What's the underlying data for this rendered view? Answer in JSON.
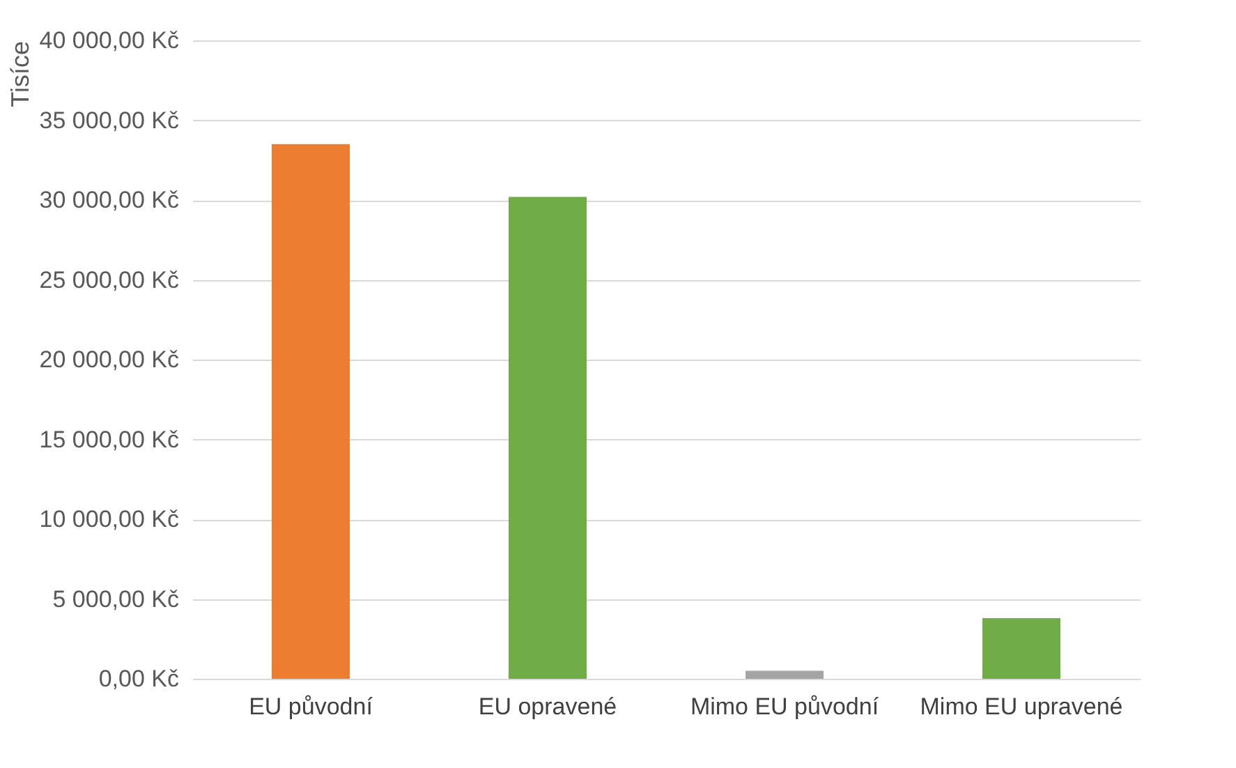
{
  "chart_data": {
    "type": "bar",
    "ylabel": "Tisíce",
    "categories": [
      "EU původní",
      "EU opravené",
      "Mimo EU původní",
      "Mimo EU upravené"
    ],
    "values": [
      33500,
      30200,
      500,
      3800
    ],
    "colors": [
      "#ed7d31",
      "#70ad47",
      "#a5a5a5",
      "#70ad47"
    ],
    "ylim": [
      0,
      40000
    ],
    "yticks": [
      {
        "value": 0,
        "label": "0,00 Kč"
      },
      {
        "value": 5000,
        "label": "5 000,00 Kč"
      },
      {
        "value": 10000,
        "label": "10 000,00 Kč"
      },
      {
        "value": 15000,
        "label": "15 000,00 Kč"
      },
      {
        "value": 20000,
        "label": "20 000,00 Kč"
      },
      {
        "value": 25000,
        "label": "25 000,00 Kč"
      },
      {
        "value": 30000,
        "label": "30 000,00 Kč"
      },
      {
        "value": 35000,
        "label": "35 000,00 Kč"
      },
      {
        "value": 40000,
        "label": "40 000,00 Kč"
      }
    ],
    "grid": "y"
  }
}
